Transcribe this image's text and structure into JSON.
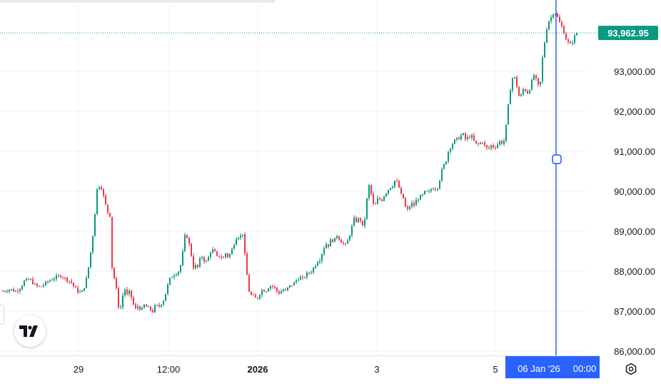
{
  "chart_data": {
    "type": "candlestick",
    "y_ticks": [
      "93,000.00",
      "92,000.00",
      "91,000.00",
      "90,000.00",
      "89,000.00",
      "88,000.00",
      "87,000.00",
      "86,000.00"
    ],
    "x_ticks": [
      {
        "label": "29",
        "bold": false
      },
      {
        "label": "12:00",
        "bold": false
      },
      {
        "label": "2026",
        "bold": true
      },
      {
        "label": "3",
        "bold": false
      },
      {
        "label": "5",
        "bold": false
      }
    ],
    "ylim": [
      85900,
      94800
    ],
    "last_price": "93,962.95",
    "last_price_value": 93962.95,
    "crosshair": {
      "date_label": "06 Jan '26",
      "time_label": "00:00",
      "price_value": 90800
    },
    "up_color": "#089981",
    "down_color": "#f23645",
    "price_path": [
      [
        0,
        87500
      ],
      [
        10,
        87550
      ],
      [
        18,
        87500
      ],
      [
        25,
        87600
      ],
      [
        30,
        87750
      ],
      [
        38,
        87800
      ],
      [
        45,
        87650
      ],
      [
        52,
        87600
      ],
      [
        60,
        87700
      ],
      [
        68,
        87800
      ],
      [
        75,
        87850
      ],
      [
        82,
        87900
      ],
      [
        88,
        87800
      ],
      [
        95,
        87750
      ],
      [
        100,
        87600
      ],
      [
        105,
        87500
      ],
      [
        110,
        87450
      ],
      [
        116,
        87700
      ],
      [
        120,
        88100
      ],
      [
        124,
        88600
      ],
      [
        128,
        89200
      ],
      [
        131,
        90000
      ],
      [
        134,
        90150
      ],
      [
        138,
        90100
      ],
      [
        142,
        89800
      ],
      [
        146,
        89500
      ],
      [
        150,
        89400
      ],
      [
        152,
        88200
      ],
      [
        155,
        87900
      ],
      [
        158,
        87700
      ],
      [
        161,
        87200
      ],
      [
        164,
        87000
      ],
      [
        167,
        87300
      ],
      [
        170,
        87600
      ],
      [
        174,
        87400
      ],
      [
        178,
        87500
      ],
      [
        182,
        87200
      ],
      [
        186,
        87050
      ],
      [
        190,
        87150
      ],
      [
        194,
        87000
      ],
      [
        198,
        87150
      ],
      [
        202,
        87100
      ],
      [
        206,
        87050
      ],
      [
        210,
        87000
      ],
      [
        214,
        87150
      ],
      [
        218,
        87100
      ],
      [
        222,
        87200
      ],
      [
        226,
        87300
      ],
      [
        230,
        87600
      ],
      [
        234,
        87800
      ],
      [
        238,
        87900
      ],
      [
        242,
        87950
      ],
      [
        246,
        88000
      ],
      [
        250,
        88200
      ],
      [
        253,
        88600
      ],
      [
        256,
        89000
      ],
      [
        259,
        88800
      ],
      [
        262,
        88600
      ],
      [
        265,
        88300
      ],
      [
        268,
        88000
      ],
      [
        271,
        88200
      ],
      [
        274,
        88050
      ],
      [
        277,
        88400
      ],
      [
        280,
        88350
      ],
      [
        284,
        88200
      ],
      [
        288,
        88350
      ],
      [
        292,
        88550
      ],
      [
        296,
        88500
      ],
      [
        300,
        88350
      ],
      [
        304,
        88400
      ],
      [
        308,
        88300
      ],
      [
        312,
        88450
      ],
      [
        316,
        88350
      ],
      [
        320,
        88500
      ],
      [
        324,
        88700
      ],
      [
        328,
        88900
      ],
      [
        332,
        88850
      ],
      [
        336,
        88950
      ],
      [
        339,
        88400
      ],
      [
        342,
        87900
      ],
      [
        345,
        87500
      ],
      [
        348,
        87400
      ],
      [
        352,
        87350
      ],
      [
        356,
        87300
      ],
      [
        360,
        87450
      ],
      [
        364,
        87550
      ],
      [
        368,
        87500
      ],
      [
        372,
        87600
      ],
      [
        376,
        87650
      ],
      [
        380,
        87600
      ],
      [
        384,
        87500
      ],
      [
        388,
        87450
      ],
      [
        392,
        87550
      ],
      [
        396,
        87500
      ],
      [
        400,
        87600
      ],
      [
        404,
        87650
      ],
      [
        408,
        87700
      ],
      [
        412,
        87800
      ],
      [
        416,
        87850
      ],
      [
        420,
        87800
      ],
      [
        424,
        87900
      ],
      [
        428,
        87950
      ],
      [
        432,
        88000
      ],
      [
        436,
        88100
      ],
      [
        440,
        88250
      ],
      [
        444,
        88300
      ],
      [
        448,
        88500
      ],
      [
        452,
        88700
      ],
      [
        456,
        88650
      ],
      [
        460,
        88800
      ],
      [
        464,
        88750
      ],
      [
        468,
        88900
      ],
      [
        472,
        88800
      ],
      [
        476,
        88700
      ],
      [
        480,
        88650
      ],
      [
        484,
        88800
      ],
      [
        488,
        89050
      ],
      [
        492,
        89300
      ],
      [
        496,
        89250
      ],
      [
        500,
        89350
      ],
      [
        504,
        89100
      ],
      [
        508,
        89400
      ],
      [
        511,
        90000
      ],
      [
        514,
        90200
      ],
      [
        517,
        89800
      ],
      [
        520,
        89600
      ],
      [
        523,
        89700
      ],
      [
        526,
        89850
      ],
      [
        530,
        89750
      ],
      [
        534,
        89900
      ],
      [
        538,
        90000
      ],
      [
        542,
        90100
      ],
      [
        546,
        90150
      ],
      [
        550,
        90300
      ],
      [
        554,
        90150
      ],
      [
        558,
        89900
      ],
      [
        562,
        89800
      ],
      [
        565,
        89500
      ],
      [
        568,
        89550
      ],
      [
        572,
        89700
      ],
      [
        576,
        89650
      ],
      [
        580,
        89800
      ],
      [
        584,
        89850
      ],
      [
        588,
        89900
      ],
      [
        592,
        90000
      ],
      [
        596,
        89950
      ],
      [
        600,
        90050
      ],
      [
        604,
        90100
      ],
      [
        608,
        90050
      ],
      [
        612,
        90300
      ],
      [
        616,
        90600
      ],
      [
        620,
        90700
      ],
      [
        624,
        91000
      ],
      [
        628,
        91150
      ],
      [
        632,
        91250
      ],
      [
        636,
        91300
      ],
      [
        640,
        91350
      ],
      [
        644,
        91450
      ],
      [
        648,
        91300
      ],
      [
        652,
        91350
      ],
      [
        656,
        91400
      ],
      [
        660,
        91250
      ],
      [
        664,
        91150
      ],
      [
        668,
        91200
      ],
      [
        672,
        91250
      ],
      [
        676,
        91100
      ],
      [
        680,
        91050
      ],
      [
        684,
        91150
      ],
      [
        688,
        91100
      ],
      [
        692,
        91150
      ],
      [
        696,
        91250
      ],
      [
        700,
        91200
      ],
      [
        703,
        91300
      ],
      [
        706,
        91800
      ],
      [
        709,
        92300
      ],
      [
        712,
        92700
      ],
      [
        715,
        92900
      ],
      [
        718,
        92800
      ],
      [
        721,
        92550
      ],
      [
        724,
        92300
      ],
      [
        727,
        92450
      ],
      [
        730,
        92600
      ],
      [
        733,
        92500
      ],
      [
        736,
        92450
      ],
      [
        740,
        92700
      ],
      [
        744,
        92900
      ],
      [
        748,
        92750
      ],
      [
        752,
        92500
      ],
      [
        755,
        93200
      ],
      [
        758,
        93600
      ],
      [
        761,
        94000
      ],
      [
        764,
        94250
      ],
      [
        767,
        94300
      ],
      [
        770,
        94450
      ],
      [
        773,
        94500
      ],
      [
        776,
        94400
      ],
      [
        779,
        94250
      ],
      [
        782,
        94150
      ],
      [
        785,
        94050
      ],
      [
        788,
        93850
      ],
      [
        791,
        93750
      ],
      [
        794,
        93650
      ],
      [
        797,
        93700
      ],
      [
        800,
        93850
      ],
      [
        804,
        93962.95
      ]
    ]
  }
}
